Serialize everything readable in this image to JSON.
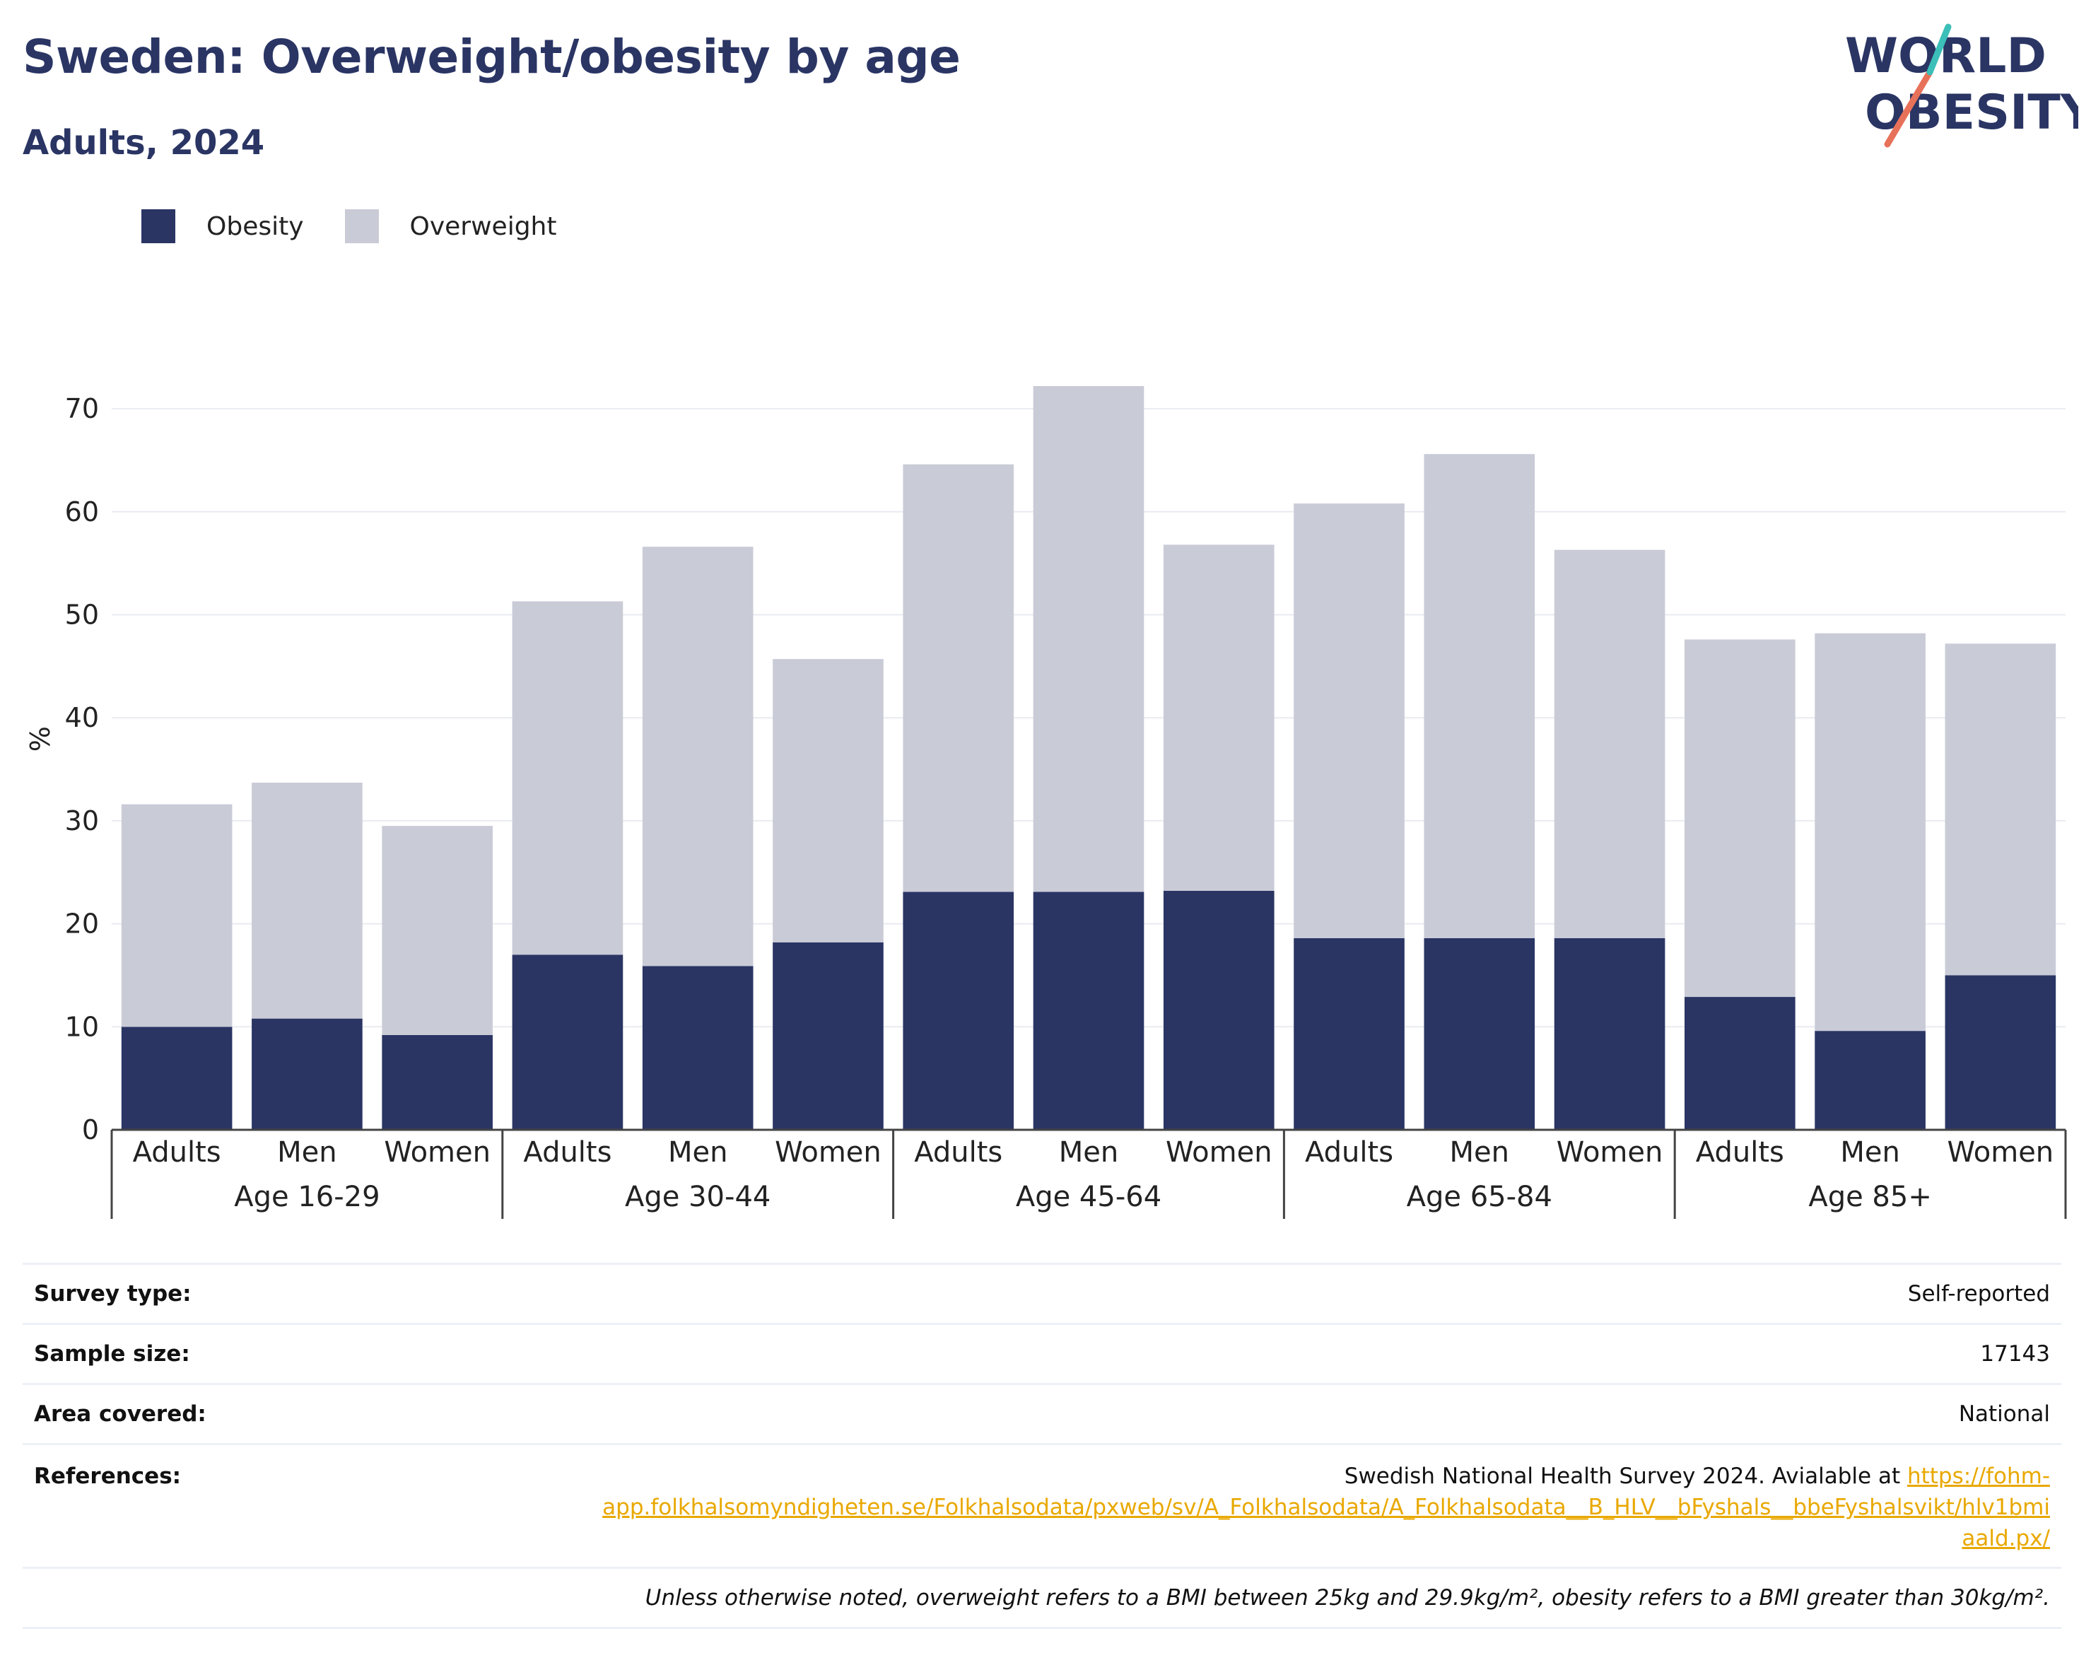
{
  "title": "Sweden: Overweight/obesity by age",
  "subtitle": "Adults, 2024",
  "logo": {
    "line1": "WORLD",
    "line2": "OBESITY"
  },
  "legend": [
    {
      "label": "Obesity",
      "color": "#2a3564"
    },
    {
      "label": "Overweight",
      "color": "#c9cbd7"
    }
  ],
  "chart_data": {
    "type": "bar",
    "stacked": true,
    "ylabel": "%",
    "ylim": [
      0,
      75
    ],
    "yticks": [
      0,
      10,
      20,
      30,
      40,
      50,
      60,
      70
    ],
    "grid": true,
    "legend_position": "top-left",
    "groups": [
      {
        "label": "Age 16-29",
        "categories": [
          "Adults",
          "Men",
          "Women"
        ]
      },
      {
        "label": "Age 30-44",
        "categories": [
          "Adults",
          "Men",
          "Women"
        ]
      },
      {
        "label": "Age 45-64",
        "categories": [
          "Adults",
          "Men",
          "Women"
        ]
      },
      {
        "label": "Age 65-84",
        "categories": [
          "Adults",
          "Men",
          "Women"
        ]
      },
      {
        "label": "Age 85+",
        "categories": [
          "Adults",
          "Men",
          "Women"
        ]
      }
    ],
    "series": [
      {
        "name": "Obesity",
        "color": "#2a3564",
        "values": [
          10.0,
          10.8,
          9.2,
          17.0,
          15.9,
          18.2,
          23.1,
          23.1,
          23.2,
          18.6,
          18.6,
          18.6,
          12.9,
          9.6,
          15.0
        ]
      },
      {
        "name": "Overweight",
        "color": "#c9cbd7",
        "values": [
          21.6,
          22.9,
          20.3,
          34.3,
          40.7,
          27.5,
          41.5,
          49.1,
          33.6,
          42.2,
          47.0,
          37.7,
          34.7,
          38.6,
          32.2
        ]
      }
    ]
  },
  "info": {
    "survey_type_label": "Survey type:",
    "survey_type_value": "Self-reported",
    "sample_size_label": "Sample size:",
    "sample_size_value": "17143",
    "area_label": "Area covered:",
    "area_value": "National",
    "references_label": "References:",
    "references_text": "Swedish National Health Survey 2024. Avialable at ",
    "references_link_1": "https://fohm-",
    "references_link_2": "app.folkhalsomyndigheten.se/Folkhalsodata/pxweb/sv/A_Folkhalsodata/A_Folkhalsodata__B_HLV__bFyshals__bbeFyshalsvikt/hlv1bmi",
    "references_link_3": "aald.px/",
    "note": "Unless otherwise noted, overweight refers to a BMI between 25kg and 29.9kg/m², obesity refers to a BMI greater than 30kg/m²."
  }
}
